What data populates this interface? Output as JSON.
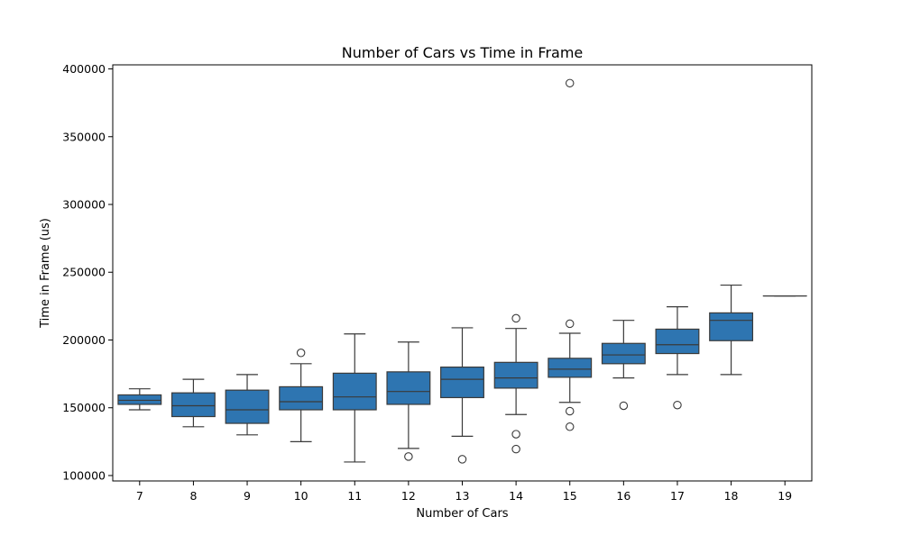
{
  "chart_data": {
    "type": "box",
    "title": "Number of Cars vs Time in Frame",
    "xlabel": "Number of Cars",
    "ylabel": "Time in Frame (us)",
    "ylim": [
      96000,
      403000
    ],
    "yticks": [
      100000,
      150000,
      200000,
      250000,
      300000,
      350000,
      400000
    ],
    "grid": false,
    "legend": "none",
    "box_color": "#2e75b1",
    "line_color": "#3a3a3a",
    "categories": [
      "7",
      "8",
      "9",
      "10",
      "11",
      "12",
      "13",
      "14",
      "15",
      "16",
      "17",
      "18",
      "19"
    ],
    "boxes": [
      {
        "category": "7",
        "whisker_low": 148500,
        "q1": 152500,
        "median": 155500,
        "q3": 159500,
        "whisker_high": 164000,
        "outliers": []
      },
      {
        "category": "8",
        "whisker_low": 136000,
        "q1": 143500,
        "median": 151500,
        "q3": 161000,
        "whisker_high": 171000,
        "outliers": []
      },
      {
        "category": "9",
        "whisker_low": 130000,
        "q1": 138500,
        "median": 148500,
        "q3": 163000,
        "whisker_high": 174500,
        "outliers": []
      },
      {
        "category": "10",
        "whisker_low": 125000,
        "q1": 148500,
        "median": 154500,
        "q3": 165500,
        "whisker_high": 182500,
        "outliers": [
          190500
        ]
      },
      {
        "category": "11",
        "whisker_low": 110000,
        "q1": 148500,
        "median": 158000,
        "q3": 175500,
        "whisker_high": 204500,
        "outliers": []
      },
      {
        "category": "12",
        "whisker_low": 120000,
        "q1": 152500,
        "median": 162000,
        "q3": 176500,
        "whisker_high": 198500,
        "outliers": [
          114000
        ]
      },
      {
        "category": "13",
        "whisker_low": 129000,
        "q1": 157500,
        "median": 171000,
        "q3": 180000,
        "whisker_high": 209000,
        "outliers": [
          112000
        ]
      },
      {
        "category": "14",
        "whisker_low": 145000,
        "q1": 164500,
        "median": 172000,
        "q3": 183500,
        "whisker_high": 208500,
        "outliers": [
          130500,
          119500,
          216000
        ]
      },
      {
        "category": "15",
        "whisker_low": 154000,
        "q1": 172500,
        "median": 178500,
        "q3": 186500,
        "whisker_high": 205000,
        "outliers": [
          147500,
          136000,
          212000,
          389500
        ]
      },
      {
        "category": "16",
        "whisker_low": 172000,
        "q1": 182500,
        "median": 189000,
        "q3": 197500,
        "whisker_high": 214500,
        "outliers": [
          151500
        ]
      },
      {
        "category": "17",
        "whisker_low": 174500,
        "q1": 190000,
        "median": 196500,
        "q3": 208000,
        "whisker_high": 224500,
        "outliers": [
          152000
        ]
      },
      {
        "category": "18",
        "whisker_low": 174500,
        "q1": 199500,
        "median": 214500,
        "q3": 220000,
        "whisker_high": 240500,
        "outliers": []
      },
      {
        "category": "19",
        "whisker_low": 232500,
        "q1": 232500,
        "median": 232500,
        "q3": 232500,
        "whisker_high": 232500,
        "outliers": []
      }
    ]
  }
}
